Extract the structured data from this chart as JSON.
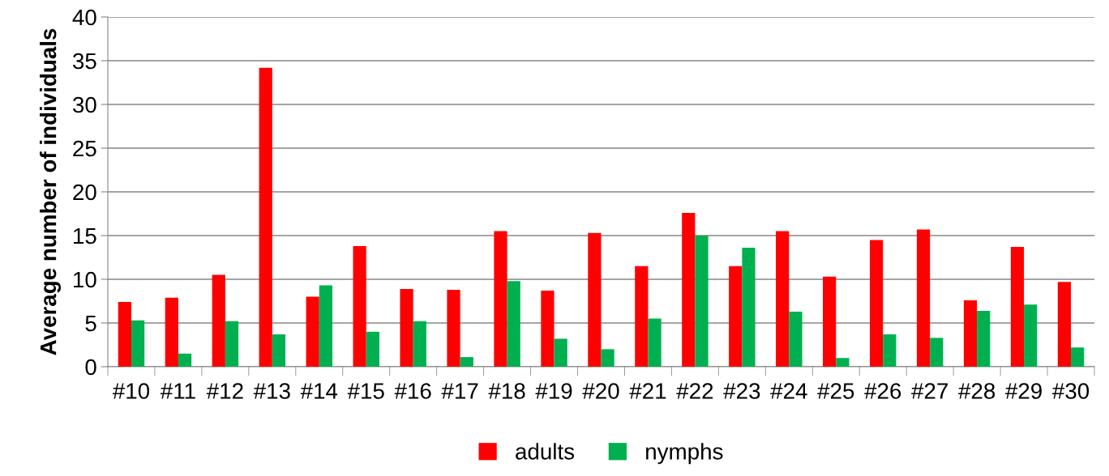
{
  "chart_data": {
    "type": "bar",
    "ylabel": "Average number of individuals",
    "categories": [
      "#10",
      "#11",
      "#12",
      "#13",
      "#14",
      "#15",
      "#16",
      "#17",
      "#18",
      "#19",
      "#20",
      "#21",
      "#22",
      "#23",
      "#24",
      "#25",
      "#26",
      "#27",
      "#28",
      "#29",
      "#30"
    ],
    "series": [
      {
        "name": "adults",
        "color": "#ff0000",
        "values": [
          7.4,
          7.9,
          10.5,
          34.2,
          8.0,
          13.8,
          8.9,
          8.8,
          15.5,
          8.7,
          15.3,
          11.5,
          17.6,
          11.5,
          15.5,
          10.3,
          14.5,
          15.7,
          7.6,
          13.7,
          9.7
        ]
      },
      {
        "name": "nymphs",
        "color": "#00b050",
        "values": [
          5.3,
          1.5,
          5.2,
          3.7,
          9.3,
          4.0,
          5.2,
          1.1,
          9.8,
          3.2,
          2.0,
          5.5,
          15.0,
          13.6,
          6.3,
          1.0,
          3.7,
          3.3,
          6.4,
          7.1,
          2.2
        ]
      }
    ],
    "ylim": [
      0,
      40
    ],
    "yticks": [
      0,
      5,
      10,
      15,
      20,
      25,
      30,
      35,
      40
    ],
    "grid": "y",
    "legend": "bottom"
  }
}
